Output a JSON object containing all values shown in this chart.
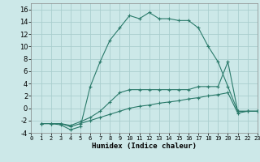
{
  "xlabel": "Humidex (Indice chaleur)",
  "bg_color": "#cce8e8",
  "grid_color": "#aacece",
  "line_color": "#2a7a6a",
  "xlim": [
    0,
    23
  ],
  "ylim": [
    -4,
    17
  ],
  "xticks": [
    0,
    1,
    2,
    3,
    4,
    5,
    6,
    7,
    8,
    9,
    10,
    11,
    12,
    13,
    14,
    15,
    16,
    17,
    18,
    19,
    20,
    21,
    22,
    23
  ],
  "yticks": [
    -4,
    -2,
    0,
    2,
    4,
    6,
    8,
    10,
    12,
    14,
    16
  ],
  "curve_bell_x": [
    1,
    2,
    3,
    4,
    5,
    6,
    7,
    8,
    9,
    10,
    11,
    12,
    13,
    14,
    15,
    16,
    17,
    18,
    19,
    20,
    21,
    22,
    23
  ],
  "curve_bell_y": [
    -2.5,
    -2.5,
    -2.7,
    -3.5,
    -3,
    3.5,
    7.5,
    11,
    13,
    15,
    14.5,
    15.5,
    14.5,
    14.5,
    14.2,
    14.2,
    13,
    10,
    7.5,
    3.5,
    -0.5,
    -0.5,
    -0.5
  ],
  "curve_upper_x": [
    1,
    2,
    3,
    4,
    5,
    6,
    7,
    8,
    9,
    10,
    11,
    12,
    13,
    14,
    15,
    16,
    17,
    18,
    19,
    20,
    21,
    22,
    23
  ],
  "curve_upper_y": [
    -2.5,
    -2.5,
    -2.5,
    -2.8,
    -2.2,
    -1.5,
    -0.5,
    1,
    2.5,
    3,
    3,
    3,
    3,
    3,
    3,
    3,
    3.5,
    3.5,
    3.5,
    7.5,
    -0.5,
    -0.5,
    -0.5
  ],
  "curve_lower_x": [
    1,
    2,
    3,
    4,
    5,
    6,
    7,
    8,
    9,
    10,
    11,
    12,
    13,
    14,
    15,
    16,
    17,
    18,
    19,
    20,
    21,
    22,
    23
  ],
  "curve_lower_y": [
    -2.5,
    -2.5,
    -2.5,
    -3.0,
    -2.5,
    -2.0,
    -1.5,
    -1.0,
    -0.5,
    0,
    0.3,
    0.5,
    0.8,
    1.0,
    1.2,
    1.5,
    1.7,
    2.0,
    2.2,
    2.5,
    -0.8,
    -0.5,
    -0.5
  ]
}
